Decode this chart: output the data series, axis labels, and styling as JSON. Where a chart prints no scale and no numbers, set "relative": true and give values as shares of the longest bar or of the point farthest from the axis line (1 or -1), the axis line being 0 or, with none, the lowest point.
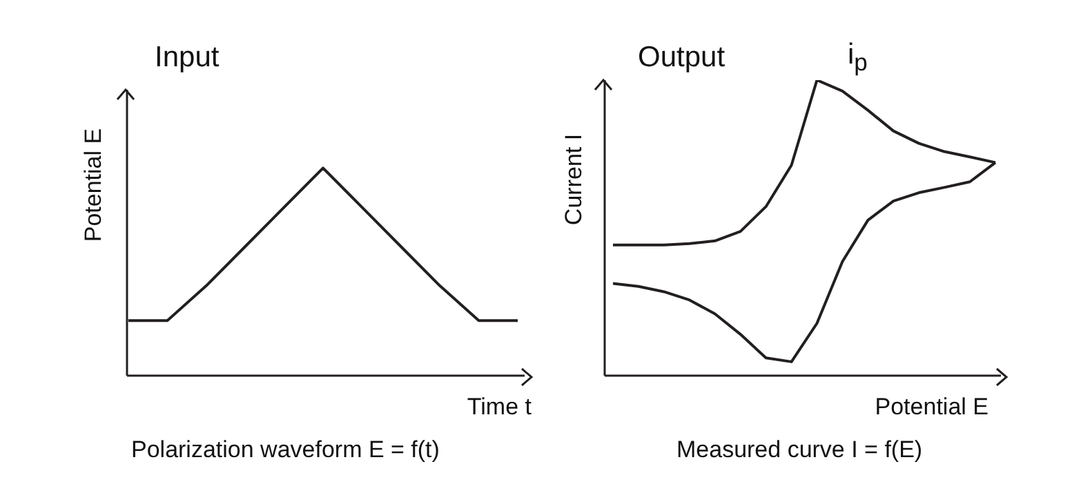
{
  "chart_data": [
    {
      "type": "line",
      "title": "Input",
      "xlabel": "Time t",
      "ylabel": "Potential E",
      "annotations": [
        "Polarization waveform E = f(t)"
      ],
      "relative": true,
      "legend": false,
      "categories": [
        null,
        null,
        null,
        null,
        null,
        null,
        null,
        null,
        null,
        null,
        null
      ],
      "series": [
        {
          "color": "#231f20",
          "values": [
            0.265,
            0.265,
            0.433,
            0.622,
            0.811,
            1,
            0.811,
            0.622,
            0.433,
            0.265,
            0.265
          ]
        }
      ]
    },
    {
      "type": "line",
      "title": "Output",
      "xlabel": "Potential E",
      "ylabel": "Current I",
      "annotations": [
        "Measured curve I = f(E)",
        "i$_{p}$"
      ],
      "relative": true,
      "legend": false,
      "categories": [
        null,
        null,
        null,
        null,
        null,
        null,
        null,
        null,
        null,
        null,
        null,
        null,
        null,
        null,
        null,
        null
      ],
      "series": [
        {
          "color": "#231f20",
          "values": [
            0.442,
            0.442,
            0.442,
            0.447,
            0.456,
            0.488,
            0.572,
            0.712,
            1,
            0.963,
            0.898,
            0.828,
            0.786,
            0.758,
            0.74,
            0.721
          ]
        },
        {
          "color": "#231f20",
          "values": [
            0.312,
            0.302,
            0.284,
            0.256,
            0.209,
            0.14,
            0.06,
            0.047,
            0.177,
            0.386,
            0.526,
            0.591,
            0.619,
            0.637,
            0.656,
            0.721
          ]
        }
      ]
    }
  ]
}
